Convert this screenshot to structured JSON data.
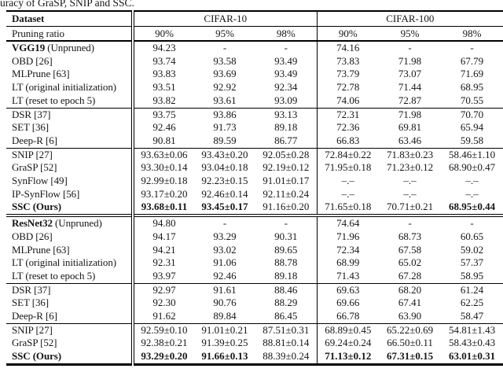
{
  "caption": "uracy of GraSP, SNIP and SSC.",
  "colors": {
    "text": "#161616",
    "rule": "#000000",
    "background": "#ffffff"
  },
  "header": {
    "dataset_label": "Dataset",
    "pruning_label": "Pruning ratio",
    "datasets": [
      "CIFAR-10",
      "CIFAR-100"
    ],
    "ratios": [
      "90%",
      "95%",
      "98%",
      "90%",
      "95%",
      "98%"
    ]
  },
  "sections": [
    {
      "divider": "none",
      "rows": [
        {
          "label": [
            [
              "VGG19",
              1
            ],
            [
              " (Unpruned)",
              0
            ]
          ],
          "cells": [
            [
              "94.23",
              0
            ],
            [
              "-",
              0
            ],
            [
              "-",
              0
            ],
            [
              "74.16",
              0
            ],
            [
              "-",
              0
            ],
            [
              "-",
              0
            ]
          ]
        },
        {
          "label": [
            [
              "OBD [26]",
              0
            ]
          ],
          "cells": [
            [
              "93.74",
              0
            ],
            [
              "93.58",
              0
            ],
            [
              "93.49",
              0
            ],
            [
              "73.83",
              0
            ],
            [
              "71.98",
              0
            ],
            [
              "67.79",
              0
            ]
          ]
        },
        {
          "label": [
            [
              "MLPrune [63]",
              0
            ]
          ],
          "cells": [
            [
              "93.83",
              0
            ],
            [
              "93.69",
              0
            ],
            [
              "93.49",
              0
            ],
            [
              "73.79",
              0
            ],
            [
              "73.07",
              0
            ],
            [
              "71.69",
              0
            ]
          ]
        },
        {
          "label": [
            [
              "LT (original initialization)",
              0
            ]
          ],
          "cells": [
            [
              "93.51",
              0
            ],
            [
              "92.92",
              0
            ],
            [
              "92.34",
              0
            ],
            [
              "72.78",
              0
            ],
            [
              "71.44",
              0
            ],
            [
              "68.95",
              0
            ]
          ]
        },
        {
          "label": [
            [
              "LT (reset to epoch 5)",
              0
            ]
          ],
          "cells": [
            [
              "93.82",
              0
            ],
            [
              "93.61",
              0
            ],
            [
              "93.09",
              0
            ],
            [
              "74.06",
              0
            ],
            [
              "72.87",
              0
            ],
            [
              "70.55",
              0
            ]
          ]
        }
      ]
    },
    {
      "divider": "thin",
      "rows": [
        {
          "label": [
            [
              "DSR [37]",
              0
            ]
          ],
          "cells": [
            [
              "93.75",
              0
            ],
            [
              "93.86",
              0
            ],
            [
              "93.13",
              0
            ],
            [
              "72.31",
              0
            ],
            [
              "71.98",
              0
            ],
            [
              "70.70",
              0
            ]
          ]
        },
        {
          "label": [
            [
              "SET [36]",
              0
            ]
          ],
          "cells": [
            [
              "92.46",
              0
            ],
            [
              "91.73",
              0
            ],
            [
              "89.18",
              0
            ],
            [
              "72.36",
              0
            ],
            [
              "69.81",
              0
            ],
            [
              "65.94",
              0
            ]
          ]
        },
        {
          "label": [
            [
              "Deep-R [6]",
              0
            ]
          ],
          "cells": [
            [
              "90.81",
              0
            ],
            [
              "89.59",
              0
            ],
            [
              "86.77",
              0
            ],
            [
              "66.83",
              0
            ],
            [
              "63.46",
              0
            ],
            [
              "59.58",
              0
            ]
          ]
        }
      ]
    },
    {
      "divider": "thin",
      "rows": [
        {
          "label": [
            [
              "SNIP [27]",
              0
            ]
          ],
          "cells": [
            [
              "93.63±0.06",
              0
            ],
            [
              "93.43±0.20",
              0
            ],
            [
              "92.05±0.28",
              0
            ],
            [
              "72.84±0.22",
              0
            ],
            [
              "71.83±0.23",
              0
            ],
            [
              "58.46±1.10",
              0
            ]
          ]
        },
        {
          "label": [
            [
              "GraSP [52]",
              0
            ]
          ],
          "cells": [
            [
              "93.30±0.14",
              0
            ],
            [
              "93.04±0.18",
              0
            ],
            [
              "92.19±0.12",
              0
            ],
            [
              "71.95±0.18",
              0
            ],
            [
              "71.23±0.12",
              0
            ],
            [
              "68.90±0.47",
              0
            ]
          ]
        },
        {
          "label": [
            [
              "SynFlow [49]",
              0
            ]
          ],
          "cells": [
            [
              "92.99±0.18",
              0
            ],
            [
              "92.23±0.15",
              0
            ],
            [
              "91.01±0.17",
              0
            ],
            [
              "–.–",
              0
            ],
            [
              "–.–",
              0
            ],
            [
              "–.–",
              0
            ]
          ]
        },
        {
          "label": [
            [
              "IP-SynFlow [56]",
              0
            ]
          ],
          "cells": [
            [
              "93.17±0.20",
              0
            ],
            [
              "92.46±0.14",
              0
            ],
            [
              "92.11±0.24",
              0
            ],
            [
              "–.–",
              0
            ],
            [
              "–.–",
              0
            ],
            [
              "–.–",
              0
            ]
          ]
        },
        {
          "label": [
            [
              "SSC (Ours)",
              1
            ]
          ],
          "cells": [
            [
              "93.68±0.11",
              1
            ],
            [
              "93.45±0.17",
              1
            ],
            [
              "91.16±0.20",
              0
            ],
            [
              "71.65±0.18",
              0
            ],
            [
              "70.71±0.21",
              0
            ],
            [
              "68.95±0.44",
              1
            ]
          ]
        }
      ]
    },
    {
      "divider": "double",
      "rows": [
        {
          "label": [
            [
              "ResNet32",
              1
            ],
            [
              " (Unpruned)",
              0
            ]
          ],
          "cells": [
            [
              "94.80",
              0
            ],
            [
              "-",
              0
            ],
            [
              "-",
              0
            ],
            [
              "74.64",
              0
            ],
            [
              "-",
              0
            ],
            [
              "-",
              0
            ]
          ]
        },
        {
          "label": [
            [
              "OBD [26]",
              0
            ]
          ],
          "cells": [
            [
              "94.17",
              0
            ],
            [
              "93.29",
              0
            ],
            [
              "90.31",
              0
            ],
            [
              "71.96",
              0
            ],
            [
              "68.73",
              0
            ],
            [
              "60.65",
              0
            ]
          ]
        },
        {
          "label": [
            [
              "MLPrune [63]",
              0
            ]
          ],
          "cells": [
            [
              "94.21",
              0
            ],
            [
              "93.02",
              0
            ],
            [
              "89.65",
              0
            ],
            [
              "72.34",
              0
            ],
            [
              "67.58",
              0
            ],
            [
              "59.02",
              0
            ]
          ]
        },
        {
          "label": [
            [
              "LT (original initialization)",
              0
            ]
          ],
          "cells": [
            [
              "92.31",
              0
            ],
            [
              "91.06",
              0
            ],
            [
              "88.78",
              0
            ],
            [
              "68.99",
              0
            ],
            [
              "65.02",
              0
            ],
            [
              "57.37",
              0
            ]
          ]
        },
        {
          "label": [
            [
              "LT (reset to epoch 5)",
              0
            ]
          ],
          "cells": [
            [
              "93.97",
              0
            ],
            [
              "92.46",
              0
            ],
            [
              "89.18",
              0
            ],
            [
              "71.43",
              0
            ],
            [
              "67.28",
              0
            ],
            [
              "58.95",
              0
            ]
          ]
        }
      ]
    },
    {
      "divider": "thin",
      "rows": [
        {
          "label": [
            [
              "DSR [37]",
              0
            ]
          ],
          "cells": [
            [
              "92.97",
              0
            ],
            [
              "91.61",
              0
            ],
            [
              "88.46",
              0
            ],
            [
              "69.63",
              0
            ],
            [
              "68.20",
              0
            ],
            [
              "61.24",
              0
            ]
          ]
        },
        {
          "label": [
            [
              "SET [36]",
              0
            ]
          ],
          "cells": [
            [
              "92.30",
              0
            ],
            [
              "90.76",
              0
            ],
            [
              "88.29",
              0
            ],
            [
              "69.66",
              0
            ],
            [
              "67.41",
              0
            ],
            [
              "62.25",
              0
            ]
          ]
        },
        {
          "label": [
            [
              "Deep-R [6]",
              0
            ]
          ],
          "cells": [
            [
              "91.62",
              0
            ],
            [
              "89.84",
              0
            ],
            [
              "86.45",
              0
            ],
            [
              "66.78",
              0
            ],
            [
              "63.90",
              0
            ],
            [
              "58.47",
              0
            ]
          ]
        }
      ]
    },
    {
      "divider": "thin",
      "rows": [
        {
          "label": [
            [
              "SNIP [27]",
              0
            ]
          ],
          "cells": [
            [
              "92.59±0.10",
              0
            ],
            [
              "91.01±0.21",
              0
            ],
            [
              "87.51±0.31",
              0
            ],
            [
              "68.89±0.45",
              0
            ],
            [
              "65.22±0.69",
              0
            ],
            [
              "54.81±1.43",
              0
            ]
          ]
        },
        {
          "label": [
            [
              "GraSP [52]",
              0
            ]
          ],
          "cells": [
            [
              "92.38±0.21",
              0
            ],
            [
              "91.39±0.25",
              0
            ],
            [
              "88.81±0.14",
              0
            ],
            [
              "69.24±0.24",
              0
            ],
            [
              "66.50±0.11",
              0
            ],
            [
              "58.43±0.43",
              0
            ]
          ]
        },
        {
          "label": [
            [
              "SSC (Ours)",
              1
            ]
          ],
          "cells": [
            [
              "93.29±0.20",
              1
            ],
            [
              "91.66±0.13",
              1
            ],
            [
              "88.39±0.24",
              0
            ],
            [
              "71.13±0.12",
              1
            ],
            [
              "67.31±0.15",
              1
            ],
            [
              "63.01±0.31",
              1
            ]
          ]
        }
      ]
    }
  ]
}
